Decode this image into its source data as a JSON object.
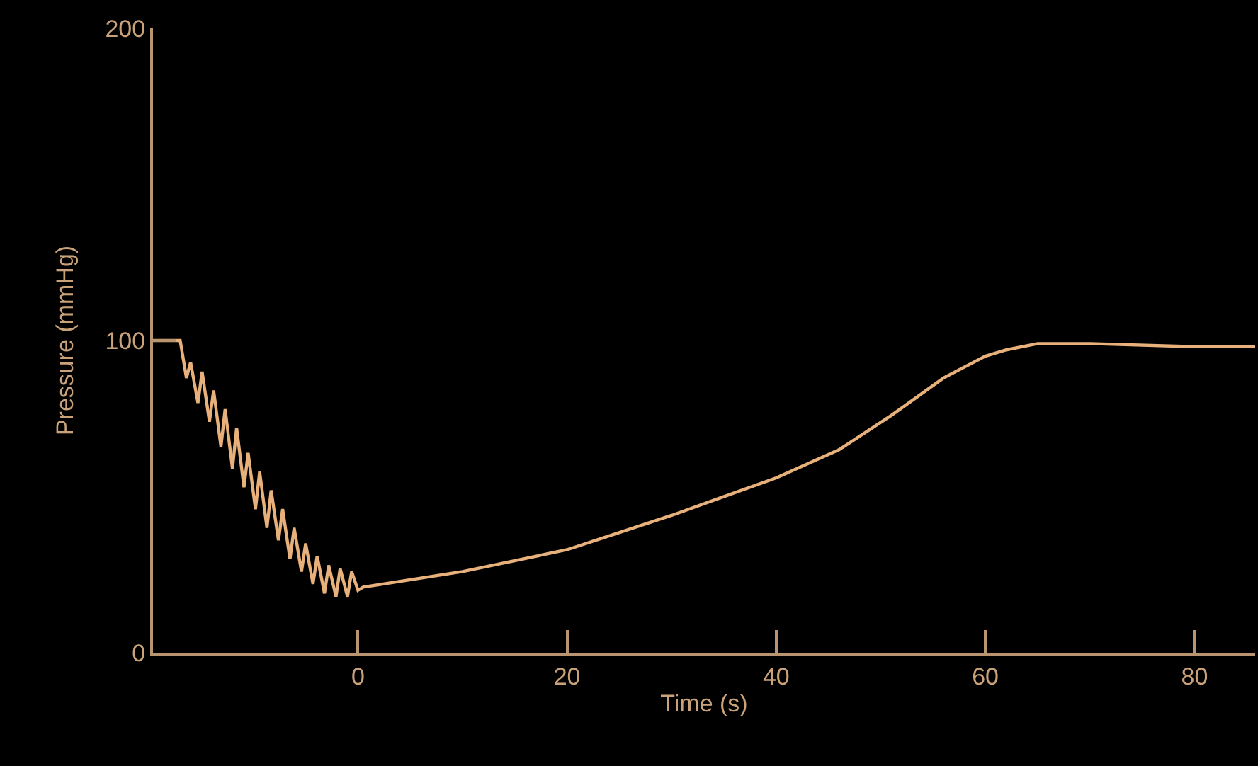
{
  "chart_data": {
    "type": "line",
    "xlabel": "Time (s)",
    "ylabel": "Pressure (mmHg)",
    "x": [
      -19.6,
      -17,
      -16.4,
      -16.0,
      -15.3,
      -14.9,
      -14.2,
      -13.8,
      -13.1,
      -12.7,
      -12.0,
      -11.6,
      -10.9,
      -10.5,
      -9.8,
      -9.4,
      -8.7,
      -8.3,
      -7.6,
      -7.2,
      -6.5,
      -6.1,
      -5.4,
      -5.0,
      -4.3,
      -3.9,
      -3.2,
      -2.8,
      -2.1,
      -1.7,
      -1.0,
      -0.6,
      0,
      0.5,
      10,
      20,
      30,
      40,
      46,
      51,
      56,
      60,
      62,
      65,
      70,
      80,
      85.8
    ],
    "series": [
      {
        "color": "#e8b07a",
        "values": [
          100,
          100,
          88,
          93,
          80,
          90,
          74,
          84,
          66,
          78,
          59,
          72,
          53,
          64,
          46,
          58,
          40,
          52,
          36,
          46,
          30,
          40,
          26,
          35,
          22,
          31,
          19,
          28,
          18,
          27,
          18,
          26,
          20,
          21,
          26,
          33,
          44,
          56,
          65,
          76,
          88,
          95,
          97,
          99,
          99,
          98,
          98
        ]
      }
    ],
    "xlim": [
      -19.6,
      85.8
    ],
    "xticks": [
      0,
      20,
      40,
      60,
      80
    ],
    "ylim": [
      0,
      200
    ],
    "yticks": [
      0,
      100,
      200
    ],
    "grid": false,
    "marker": "none",
    "line_style": "solid"
  }
}
